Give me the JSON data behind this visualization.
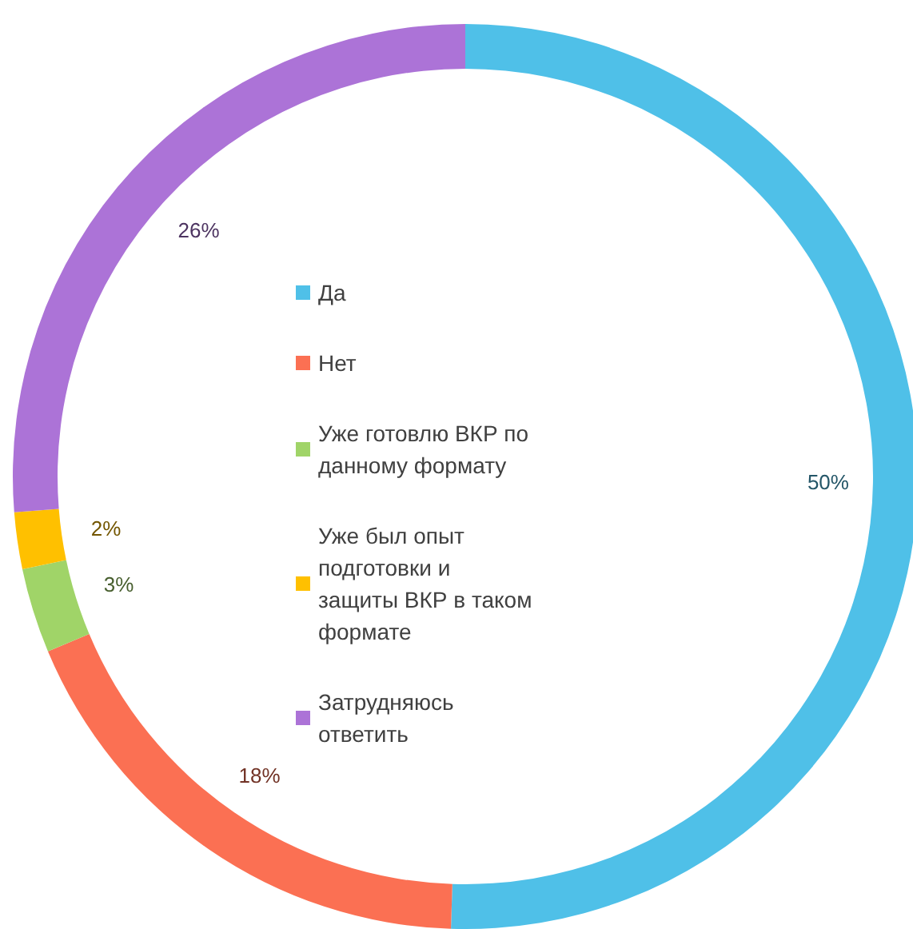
{
  "chart_data": {
    "type": "donut",
    "categories": [
      "Да",
      "Нет",
      "Уже готовлю ВКР по данному формату",
      "Уже был опыт подготовки и защиты ВКР в таком формате",
      "Затрудняюсь ответить"
    ],
    "values": [
      50,
      18,
      3,
      2,
      26
    ],
    "colors": [
      "#4fc0e8",
      "#fb7053",
      "#a0d468",
      "#ffc000",
      "#ac73d7"
    ],
    "value_labels": [
      "50%",
      "18%",
      "3%",
      "2%",
      "26%"
    ],
    "legend": "center"
  }
}
